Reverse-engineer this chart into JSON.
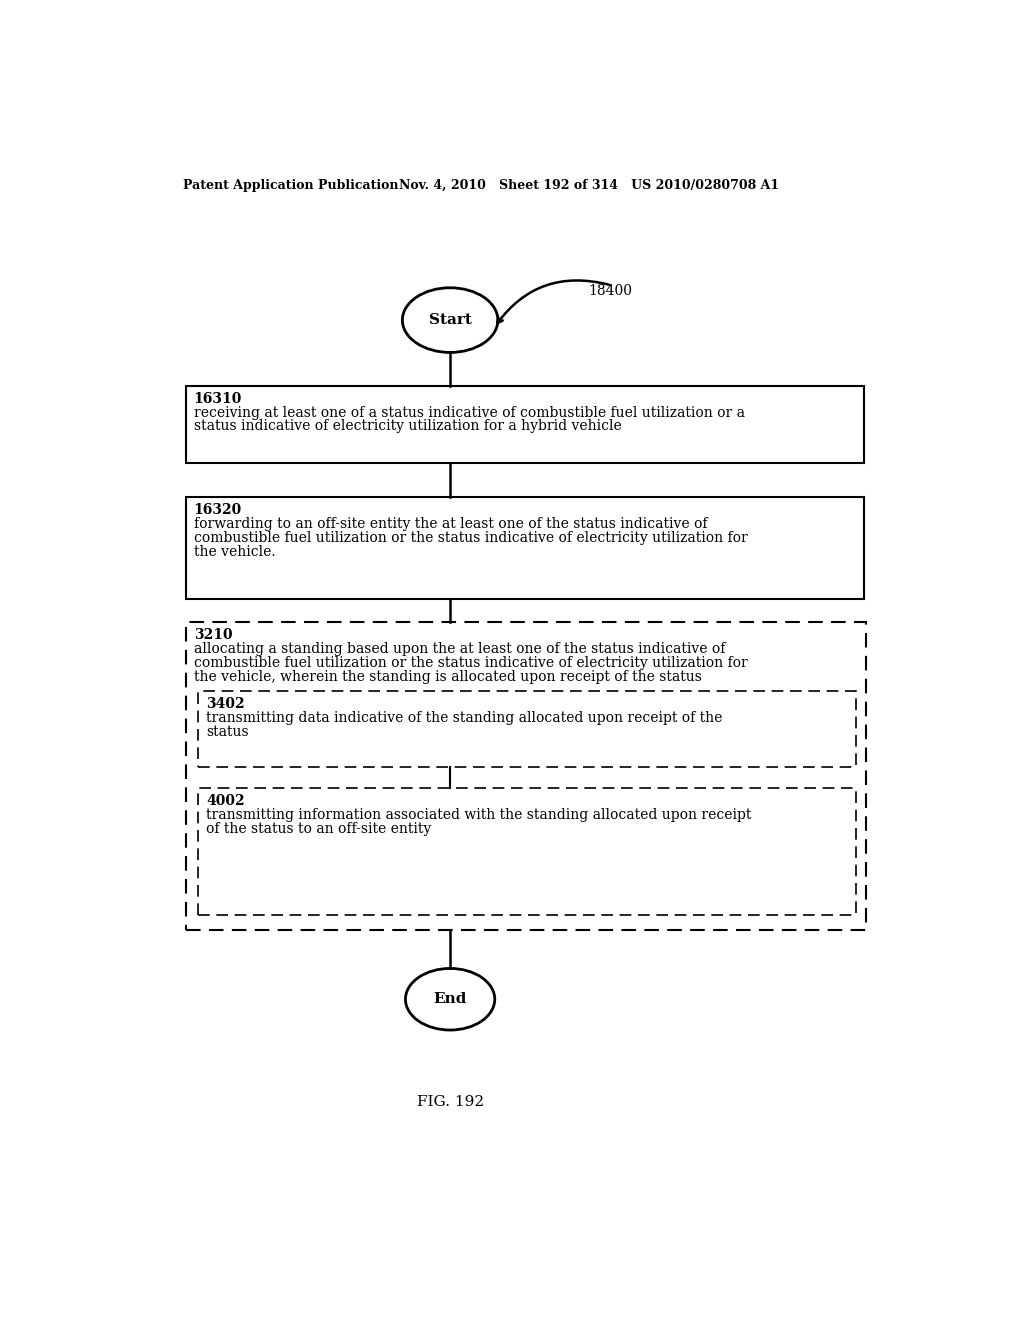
{
  "header_left": "Patent Application Publication",
  "header_right": "Nov. 4, 2010   Sheet 192 of 314   US 2010/0280708 A1",
  "fig_label": "FIG. 192",
  "label_18400": "18400",
  "start_text": "Start",
  "end_text": "End",
  "box1_id": "16310",
  "box1_line1": "receiving at least one of a status indicative of combustible fuel utilization or a",
  "box1_line2": "status indicative of electricity utilization for a hybrid vehicle",
  "box2_id": "16320",
  "box2_line1": "forwarding to an off-site entity the at least one of the status indicative of",
  "box2_line2": "combustible fuel utilization or the status indicative of electricity utilization for",
  "box2_line3": "the vehicle.",
  "outer_id": "3210",
  "outer_line1": "allocating a standing based upon the at least one of the status indicative of",
  "outer_line2": "combustible fuel utilization or the status indicative of electricity utilization for",
  "outer_line3": "the vehicle, wherein the standing is allocated upon receipt of the status",
  "inner1_id": "3402",
  "inner1_line1": "transmitting data indicative of the standing allocated upon receipt of the",
  "inner1_line2": "status",
  "inner2_id": "4002",
  "inner2_line1": "transmitting information associated with the standing allocated upon receipt",
  "inner2_line2": "of the status to an off-site entity",
  "bg_color": "#ffffff",
  "text_color": "#000000"
}
